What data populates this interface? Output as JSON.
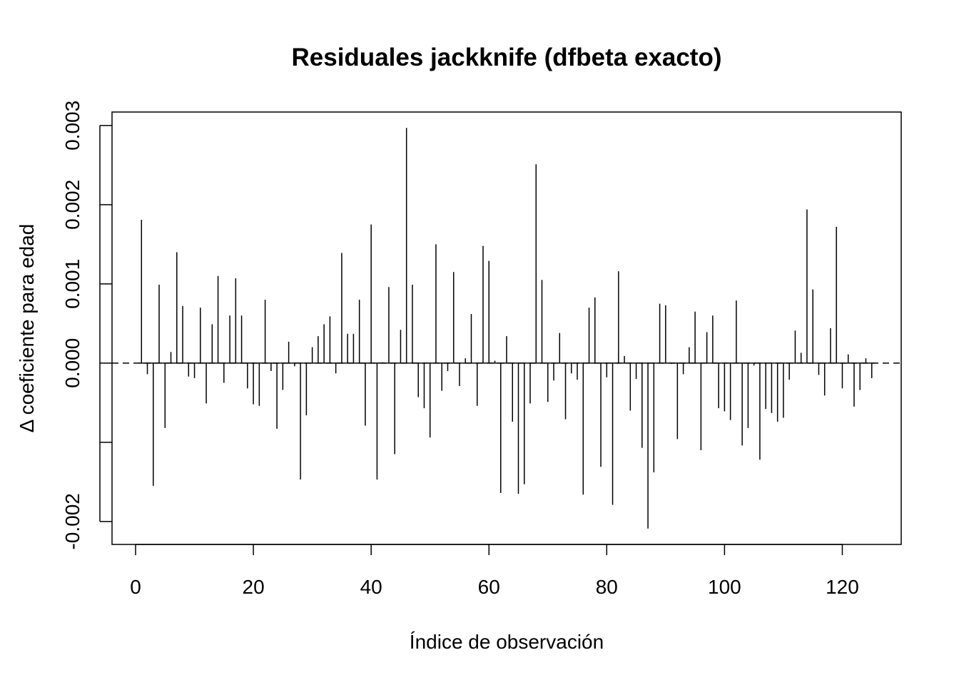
{
  "chart_data": {
    "type": "histogram-spike",
    "title": "Residuales jackknife (dfbeta exacto)",
    "xlabel": "Índice de observación",
    "ylabel": "Δ coeficiente para edad",
    "xlim": [
      -4,
      130
    ],
    "ylim": [
      -0.00229,
      0.00317
    ],
    "xticks": [
      0,
      20,
      40,
      60,
      80,
      100,
      120
    ],
    "yticks": [
      -0.002,
      -0.001,
      0.0,
      0.001,
      0.002,
      0.003
    ],
    "ytick_labels": [
      "-0.002",
      "",
      "0.000",
      "0.001",
      "0.002",
      "0.003"
    ],
    "reference_line": {
      "y": 0,
      "style": "dashed"
    },
    "x": [
      1,
      2,
      3,
      4,
      5,
      6,
      7,
      8,
      9,
      10,
      11,
      12,
      13,
      14,
      15,
      16,
      17,
      18,
      19,
      20,
      21,
      22,
      23,
      24,
      25,
      26,
      27,
      28,
      29,
      30,
      31,
      32,
      33,
      34,
      35,
      36,
      37,
      38,
      39,
      40,
      41,
      42,
      43,
      44,
      45,
      46,
      47,
      48,
      49,
      50,
      51,
      52,
      53,
      54,
      55,
      56,
      57,
      58,
      59,
      60,
      61,
      62,
      63,
      64,
      65,
      66,
      67,
      68,
      69,
      70,
      71,
      72,
      73,
      74,
      75,
      76,
      77,
      78,
      79,
      80,
      81,
      82,
      83,
      84,
      85,
      86,
      87,
      88,
      89,
      90,
      91,
      92,
      93,
      94,
      95,
      96,
      97,
      98,
      99,
      100,
      101,
      102,
      103,
      104,
      105,
      106,
      107,
      108,
      109,
      110,
      111,
      112,
      113,
      114,
      115,
      116,
      117,
      118,
      119,
      120,
      121,
      122,
      123,
      124,
      125
    ],
    "values": [
      0.00181,
      -0.00014,
      -0.00155,
      0.00099,
      -0.00082,
      0.00014,
      0.0014,
      0.00072,
      -0.00017,
      -0.00019,
      0.0007,
      -0.00051,
      0.00049,
      0.0011,
      -0.00025,
      0.0006,
      0.00107,
      0.0006,
      -0.00032,
      -0.00052,
      -0.00054,
      0.0008,
      -0.0001,
      -0.00083,
      -0.00034,
      0.00027,
      -4e-05,
      -0.00147,
      -0.00066,
      0.0002,
      0.00034,
      0.00049,
      0.00059,
      -0.00013,
      0.00139,
      0.00037,
      0.00037,
      0.0008,
      -0.00079,
      0.00175,
      -0.00147,
      1e-05,
      0.00096,
      -0.00115,
      0.00042,
      0.00297,
      0.00099,
      -0.00043,
      -0.00057,
      -0.00094,
      0.0015,
      -0.00035,
      -0.0001,
      0.00115,
      -0.00029,
      6e-05,
      0.00062,
      -0.00054,
      0.00148,
      0.00129,
      3e-05,
      -0.00164,
      0.00034,
      -0.00074,
      -0.00165,
      -0.00153,
      -0.00051,
      0.00251,
      0.00105,
      -0.00049,
      -0.00022,
      0.00038,
      -0.00071,
      -0.00013,
      -0.00021,
      -0.00166,
      0.0007,
      0.00083,
      -0.00131,
      -0.00018,
      -0.00179,
      0.00116,
      9e-05,
      -0.0006,
      -0.0002,
      -0.00107,
      -0.00209,
      -0.00138,
      0.00075,
      0.00073,
      -1e-05,
      -0.00096,
      -0.00014,
      0.0002,
      0.00065,
      -0.0011,
      0.00039,
      0.0006,
      -0.00057,
      -0.00061,
      -0.00072,
      0.00079,
      -0.00104,
      -0.00082,
      -3e-05,
      -0.00122,
      -0.00058,
      -0.00063,
      -0.00074,
      -0.00069,
      -0.00021,
      0.00041,
      0.00013,
      0.00194,
      0.00093,
      -0.00015,
      -0.00041,
      0.00044,
      0.00172,
      -0.00032,
      0.00011,
      -0.00055,
      -0.00034,
      6e-05,
      -0.00019
    ]
  }
}
